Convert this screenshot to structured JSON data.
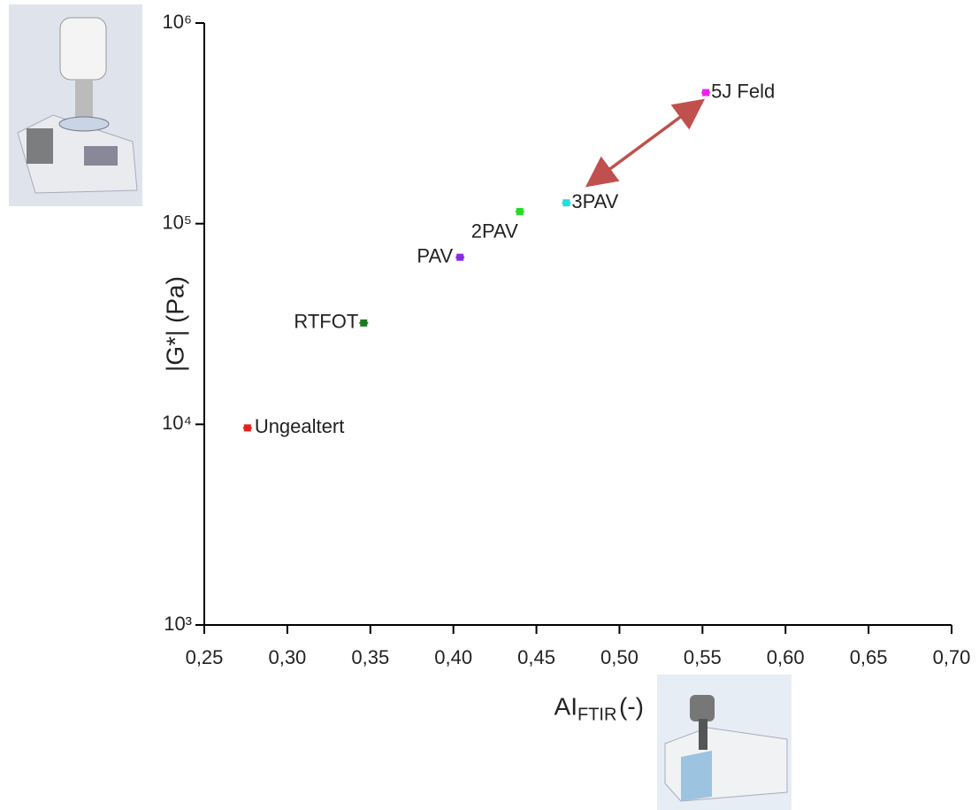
{
  "chart_data": {
    "type": "scatter",
    "xlabel": {
      "main": "AI",
      "subscript": "FTIR",
      "suffix": "(-)"
    },
    "ylabel": "|G*| (Pa)",
    "labels": [
      "Ungealtert",
      "RTFOT",
      "PAV",
      "2PAV",
      "3PAV",
      "5J Feld"
    ],
    "x": [
      0.276,
      0.346,
      0.404,
      0.44,
      0.468,
      0.552
    ],
    "values": [
      9600,
      32000,
      68000,
      115000,
      127000,
      450000
    ],
    "colors": [
      "#e8201c",
      "#1f7a1f",
      "#8a2be2",
      "#22dd22",
      "#22dddd",
      "#ee22ee"
    ],
    "xlim": [
      0.25,
      0.7
    ],
    "xticks": [
      {
        "value": 0.25,
        "label": "0,25"
      },
      {
        "value": 0.3,
        "label": "0,30"
      },
      {
        "value": 0.35,
        "label": "0,35"
      },
      {
        "value": 0.4,
        "label": "0,40"
      },
      {
        "value": 0.45,
        "label": "0,45"
      },
      {
        "value": 0.5,
        "label": "0,50"
      },
      {
        "value": 0.55,
        "label": "0,55"
      },
      {
        "value": 0.6,
        "label": "0,60"
      },
      {
        "value": 0.65,
        "label": "0,65"
      },
      {
        "value": 0.7,
        "label": "0,70"
      }
    ],
    "ylim": [
      1000,
      1000000
    ],
    "yticks": [
      {
        "value": 1000,
        "label": "10³"
      },
      {
        "value": 10000,
        "label": "10⁴"
      },
      {
        "value": 100000,
        "label": "10⁵"
      },
      {
        "value": 1000000,
        "label": "10⁶"
      }
    ],
    "ylog": true,
    "grid": false
  }
}
